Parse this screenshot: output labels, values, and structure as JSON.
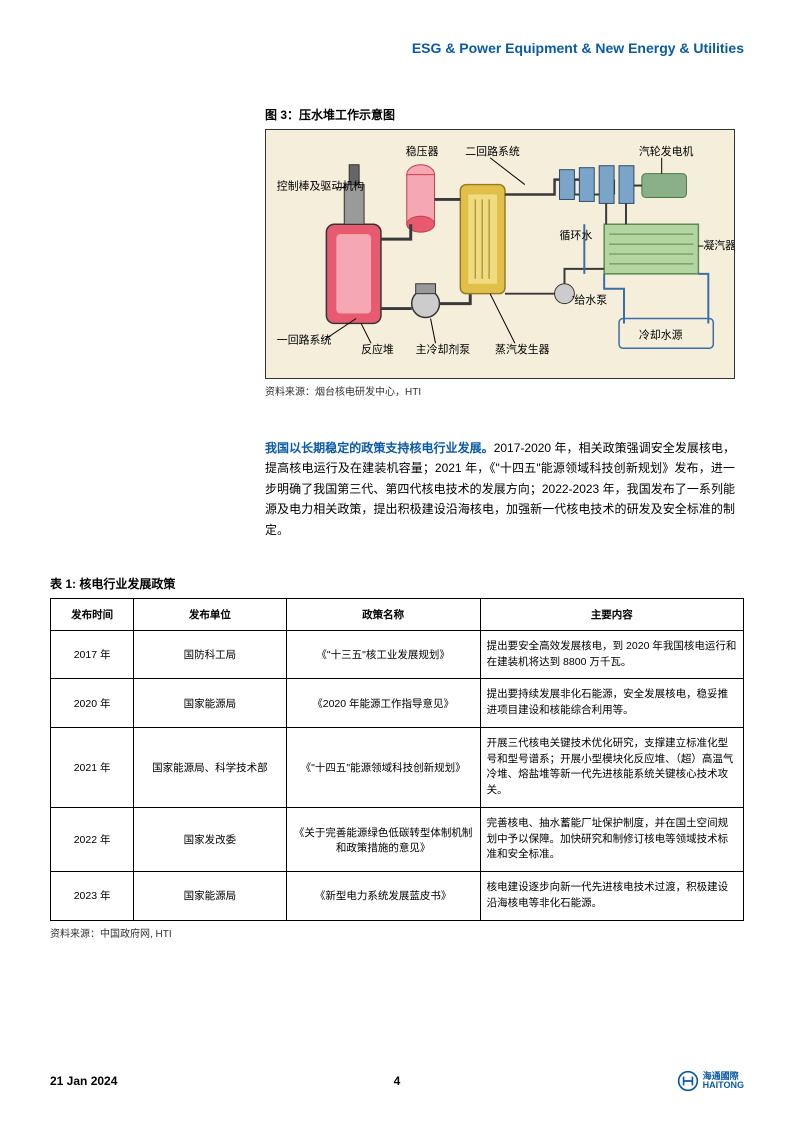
{
  "header": {
    "title": "ESG & Power Equipment & New Energy & Utilities",
    "color": "#0b5aa5"
  },
  "figure": {
    "title": "图 3：压水堆工作示意图",
    "source": "资料来源：烟台核电研发中心，HTI",
    "background_color": "#f4eedb",
    "labels": {
      "reactor_label": "反应堆",
      "control_rod": "控制棒及驱动机构",
      "pressurizer": "稳压器",
      "primary_loop": "一回路系统",
      "coolant_pump": "主冷却剂泵",
      "steam_gen": "蒸汽发生器",
      "secondary_loop": "二回路系统",
      "turbine": "汽轮发电机",
      "condenser": "凝汽器",
      "circ_water": "循环水",
      "feed_pump": "给水泵",
      "cooling_source": "冷却水源"
    },
    "colors": {
      "reactor_body": "#e85a6f",
      "reactor_light": "#f5a7b3",
      "steam_gen_body": "#e0c04a",
      "steam_gen_inner": "#f0db80",
      "turbine": "#7aa5c9",
      "condenser": "#b5d5a0",
      "pipe_primary": "#3a3a3a",
      "pipe_secondary": "#3a3a3a",
      "water": "#6aa3d0",
      "arrow": "#3a6ea5"
    }
  },
  "paragraph": {
    "lead": "我国以长期稳定的政策支持核电行业发展。",
    "body": "2017-2020 年，相关政策强调安全发展核电，提高核电运行及在建装机容量；2021 年，《\"十四五\"能源领域科技创新规划》发布，进一步明确了我国第三代、第四代核电技术的发展方向；2022-2023 年，我国发布了一系列能源及电力相关政策，提出积极建设沿海核电，加强新一代核电技术的研发及安全标准的制定。",
    "lead_color": "#0b5aa5"
  },
  "table": {
    "title": "表 1: 核电行业发展政策",
    "source": "资料来源：中国政府网, HTI",
    "columns": [
      "发布时间",
      "发布单位",
      "政策名称",
      "主要内容"
    ],
    "col_widths": [
      "12%",
      "22%",
      "28%",
      "38%"
    ],
    "rows": [
      [
        "2017 年",
        "国防科工局",
        "《\"十三五\"核工业发展规划》",
        "提出要安全高效发展核电，到 2020 年我国核电运行和在建装机将达到 8800 万千瓦。"
      ],
      [
        "2020 年",
        "国家能源局",
        "《2020 年能源工作指导意见》",
        "提出要持续发展非化石能源，安全发展核电，稳妥推进项目建设和核能综合利用等。"
      ],
      [
        "2021 年",
        "国家能源局、科学技术部",
        "《\"十四五\"能源领域科技创新规划》",
        "开展三代核电关键技术优化研究，支撑建立标准化型号和型号谱系；开展小型模块化反应堆、（超）高温气冷堆、熔盐堆等新一代先进核能系统关键核心技术攻关。"
      ],
      [
        "2022 年",
        "国家发改委",
        "《关于完善能源绿色低碳转型体制机制和政策措施的意见》",
        "完善核电、抽水蓄能厂址保护制度，并在国土空间规划中予以保障。加快研究和制修订核电等领域技术标准和安全标准。"
      ],
      [
        "2023 年",
        "国家能源局",
        "《新型电力系统发展蓝皮书》",
        "核电建设逐步向新一代先进核电技术过渡，积极建设沿海核电等非化石能源。"
      ]
    ]
  },
  "footer": {
    "date": "21 Jan 2024",
    "page": "4",
    "logo_text_cn": "海通國際",
    "logo_text_en": "HAITONG",
    "logo_color": "#0b5aa5"
  }
}
